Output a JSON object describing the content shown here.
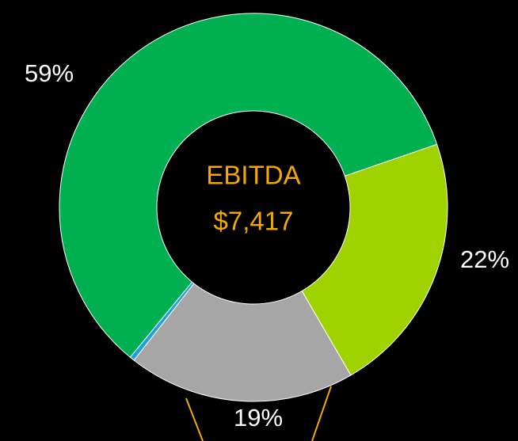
{
  "chart_data": {
    "type": "donut",
    "center_text": [
      "EBITDA",
      "$7,417"
    ],
    "values": [
      22,
      19,
      0.4,
      59
    ],
    "value_labels": [
      "22%",
      "19%",
      null,
      "59%"
    ],
    "colors": [
      "#9fd300",
      "#a6a6a6",
      "#1fa0d8",
      "#00b050"
    ]
  }
}
